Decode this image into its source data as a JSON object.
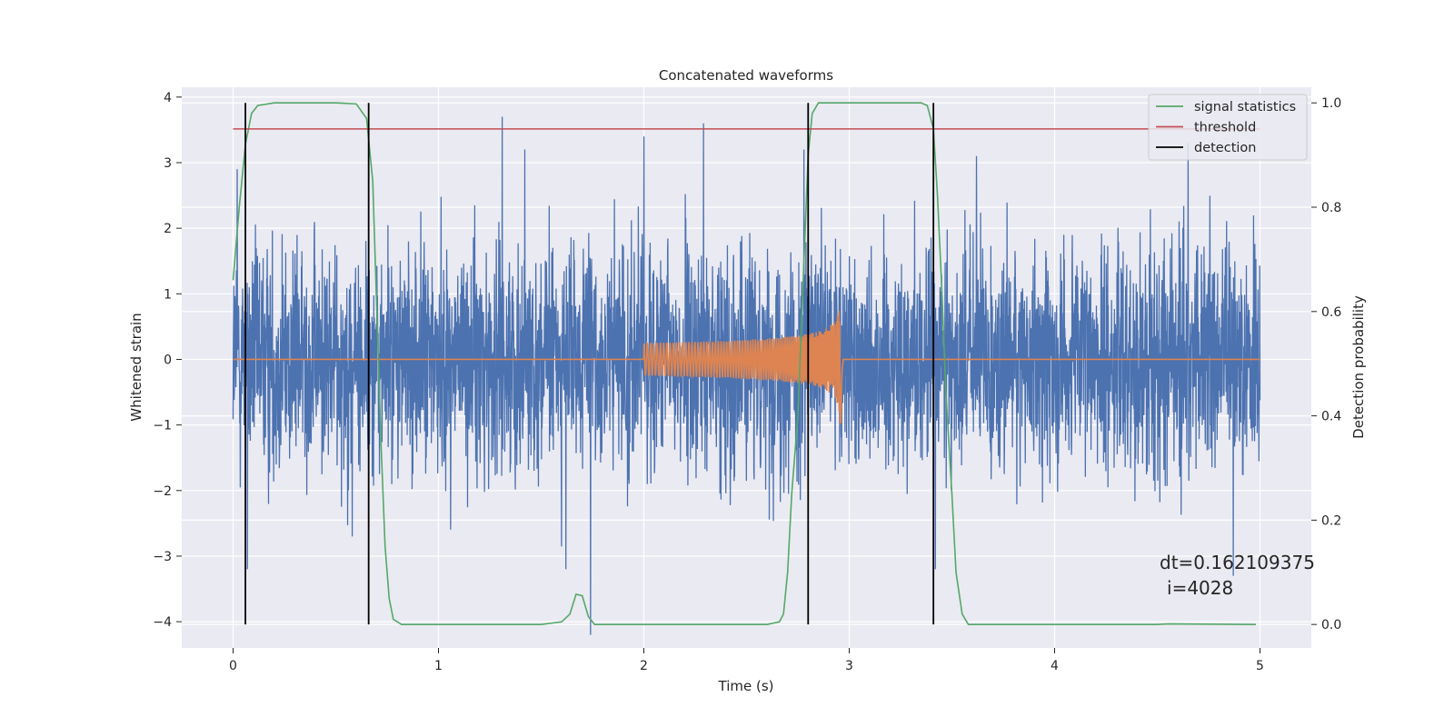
{
  "chart_data": {
    "type": "line",
    "title": "Concatenated waveforms",
    "xlabel": "Time (s)",
    "ylabel": "Whitened strain",
    "ylabel_right": "Detection probability",
    "xlim": [
      -0.25,
      5.25
    ],
    "ylim": [
      -4.4,
      4.15
    ],
    "ylim_right": [
      -0.045,
      1.03
    ],
    "x_ticks": [
      0,
      1,
      2,
      3,
      4,
      5
    ],
    "y_ticks": [
      -4,
      -3,
      -2,
      -1,
      0,
      1,
      2,
      3,
      4
    ],
    "y_ticks_right": [
      0.0,
      0.2,
      0.4,
      0.6,
      0.8,
      1.0
    ],
    "x_tick_labels": [
      "0",
      "1",
      "2",
      "3",
      "4",
      "5"
    ],
    "y_tick_labels": [
      "−4",
      "−3",
      "−2",
      "−1",
      "0",
      "1",
      "2",
      "3",
      "4"
    ],
    "y_tick_labels_right": [
      "0.0",
      "0.2",
      "0.4",
      "0.6",
      "0.8",
      "1.0"
    ],
    "grid": true,
    "legend_position": "top-right",
    "series": [
      {
        "name": "",
        "axis": "left",
        "color": "#4c72b0",
        "description": "whitened strain noise, sampled from 0 to 5 s",
        "x_range": [
          0,
          5
        ],
        "typical_peak_abs": 2.2,
        "spikes": [
          {
            "x": 0.02,
            "y": 2.9
          },
          {
            "x": 0.07,
            "y": -3.2
          },
          {
            "x": 1.31,
            "y": 3.7
          },
          {
            "x": 1.42,
            "y": 3.2
          },
          {
            "x": 1.74,
            "y": -4.2
          },
          {
            "x": 1.62,
            "y": -3.2
          },
          {
            "x": 2.29,
            "y": 3.6
          },
          {
            "x": 2.0,
            "y": 3.4
          },
          {
            "x": 2.78,
            "y": 3.2
          },
          {
            "x": 3.42,
            "y": -3.2
          },
          {
            "x": 3.62,
            "y": 3.1
          },
          {
            "x": 4.65,
            "y": 3.3
          },
          {
            "x": 4.87,
            "y": -3.3
          },
          {
            "x": 0.58,
            "y": -2.7
          }
        ]
      },
      {
        "name": "",
        "axis": "left",
        "color": "#dd8452",
        "description": "injected chirp waveform, zero outside 2.0–3.0 s",
        "x_range": [
          0,
          5
        ],
        "chirp_start": 2.0,
        "chirp_merger": 2.96,
        "chirp_start_amp": 0.25,
        "chirp_peak_amp": 1.25
      },
      {
        "name": "signal statistics",
        "axis": "right",
        "color": "#55a868",
        "points": [
          [
            0.0,
            0.66
          ],
          [
            0.03,
            0.8
          ],
          [
            0.06,
            0.92
          ],
          [
            0.09,
            0.98
          ],
          [
            0.12,
            0.995
          ],
          [
            0.2,
            1.0
          ],
          [
            0.5,
            1.0
          ],
          [
            0.6,
            0.998
          ],
          [
            0.65,
            0.97
          ],
          [
            0.68,
            0.85
          ],
          [
            0.7,
            0.6
          ],
          [
            0.72,
            0.35
          ],
          [
            0.74,
            0.15
          ],
          [
            0.76,
            0.05
          ],
          [
            0.78,
            0.01
          ],
          [
            0.82,
            0.0
          ],
          [
            1.5,
            0.0
          ],
          [
            1.6,
            0.005
          ],
          [
            1.64,
            0.02
          ],
          [
            1.67,
            0.058
          ],
          [
            1.7,
            0.055
          ],
          [
            1.73,
            0.015
          ],
          [
            1.76,
            0.0
          ],
          [
            2.6,
            0.0
          ],
          [
            2.66,
            0.005
          ],
          [
            2.68,
            0.02
          ],
          [
            2.7,
            0.1
          ],
          [
            2.72,
            0.25
          ],
          [
            2.75,
            0.4
          ],
          [
            2.78,
            0.7
          ],
          [
            2.8,
            0.9
          ],
          [
            2.82,
            0.98
          ],
          [
            2.85,
            1.0
          ],
          [
            3.35,
            1.0
          ],
          [
            3.38,
            0.995
          ],
          [
            3.41,
            0.95
          ],
          [
            3.43,
            0.82
          ],
          [
            3.45,
            0.65
          ],
          [
            3.47,
            0.45
          ],
          [
            3.5,
            0.25
          ],
          [
            3.52,
            0.1
          ],
          [
            3.55,
            0.02
          ],
          [
            3.58,
            0.0
          ],
          [
            4.5,
            0.0
          ],
          [
            4.55,
            0.001
          ],
          [
            4.98,
            0.0
          ]
        ]
      },
      {
        "name": "threshold",
        "axis": "right",
        "color": "#c44e52",
        "x_range": [
          0,
          5
        ],
        "value": 0.95
      },
      {
        "name": "detection",
        "axis": "right",
        "color": "#000000",
        "x_positions": [
          0.06,
          0.66,
          2.8,
          3.41
        ],
        "y_range": [
          0.0,
          1.0
        ]
      }
    ],
    "annotation": {
      "text_line1": "dt=0.162109375",
      "text_line2": "i=4028",
      "x": 4.52,
      "y_right": 0.1
    },
    "colors": {
      "axes_background": "#eaeaf2",
      "grid": "#ffffff",
      "figure_background": "#ffffff"
    }
  }
}
